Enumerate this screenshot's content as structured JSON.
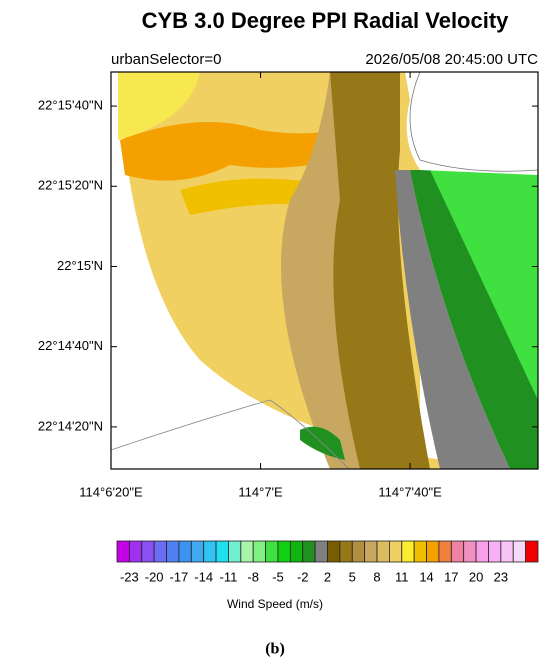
{
  "title": "CYB 3.0 Degree PPI Radial Velocity",
  "subtitle_left": "urbanSelector=0",
  "subtitle_right": "2026/05/08 20:45:00 UTC",
  "ylim": [
    22.235972,
    22.263472
  ],
  "yticks": [
    {
      "value": 22.261111,
      "label": "22°15'40\"N"
    },
    {
      "value": 22.255556,
      "label": "22°15'20\"N"
    },
    {
      "value": 22.25,
      "label": "22°15'N"
    },
    {
      "value": 22.244444,
      "label": "22°14'40\"N"
    },
    {
      "value": 22.238889,
      "label": "22°14'20\"N"
    }
  ],
  "xlim": [
    114.105556,
    114.13728
  ],
  "xticks": [
    {
      "value": 114.105556,
      "label": "114°6'20\"E"
    },
    {
      "value": 114.116667,
      "label": "114°7'E"
    },
    {
      "value": 114.127778,
      "label": "114°7'40\"E"
    }
  ],
  "colorbar": {
    "levels": [
      -23,
      -20,
      -17,
      -14,
      -11,
      -8,
      -5,
      -2,
      2,
      5,
      8,
      11,
      14,
      17,
      20,
      23
    ],
    "colors": [
      "#c400e8",
      "#a030f0",
      "#8a50f4",
      "#6c6cf4",
      "#4f80f4",
      "#3c94f0",
      "#40aaf0",
      "#30c4f0",
      "#20e0f0",
      "#70f0d0",
      "#a8f4a8",
      "#80f080",
      "#40e040",
      "#10d010",
      "#10b410",
      "#209020",
      "#808080",
      "#7a5c00",
      "#967818",
      "#b09040",
      "#c8a860",
      "#dcbc60",
      "#f0d060",
      "#fcec30",
      "#f0c000",
      "#f4a000",
      "#f08040",
      "#f080a0",
      "#f090c0",
      "#f8a0e8",
      "#f8b0f4",
      "#f8c4f8",
      "#f8d8f8",
      "#f00000"
    ],
    "label": "Wind Speed (m/s)"
  },
  "caption": "(b)"
}
